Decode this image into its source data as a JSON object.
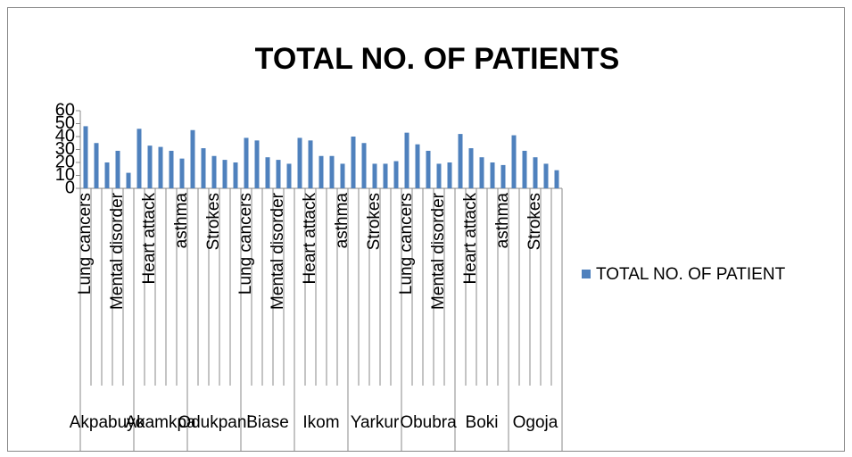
{
  "chart_data": {
    "type": "bar",
    "title": "TOTAL NO. OF PATIENTS",
    "categories": [
      "Lung cancers",
      null,
      null,
      "Mental disorder",
      null,
      null,
      "Heart attack",
      null,
      null,
      "asthma",
      null,
      null,
      "Strokes",
      null,
      null,
      "Lung cancers",
      null,
      null,
      "Mental disorder",
      null,
      null,
      "Heart attack",
      null,
      null,
      "asthma",
      null,
      null,
      "Strokes",
      null,
      null,
      "Lung cancers",
      null,
      null,
      "Mental disorder",
      null,
      null,
      "Heart attack",
      null,
      null,
      "asthma",
      null,
      null,
      "Strokes",
      null,
      null
    ],
    "groups": [
      "Akpabuyo",
      "Akamkpa",
      "Odukpani",
      "Biase",
      "Ikom",
      "Yarkur",
      "Obubra",
      "Boki",
      "Ogoja"
    ],
    "series": [
      {
        "name": "TOTAL NO. OF PATIENT",
        "color": "#4f81bd",
        "values": [
          48,
          35,
          20,
          29,
          12,
          46,
          33,
          32,
          29,
          23,
          45,
          31,
          25,
          22,
          20,
          39,
          37,
          24,
          22,
          19,
          39,
          37,
          25,
          25,
          19,
          40,
          35,
          19,
          19,
          21,
          43,
          34,
          29,
          19,
          20,
          42,
          31,
          24,
          20,
          18,
          41,
          29,
          24,
          19,
          14
        ]
      }
    ],
    "ylim": [
      0,
      60
    ],
    "yticks": [
      0,
      10,
      20,
      30,
      40,
      50,
      60
    ],
    "legend": "right"
  }
}
